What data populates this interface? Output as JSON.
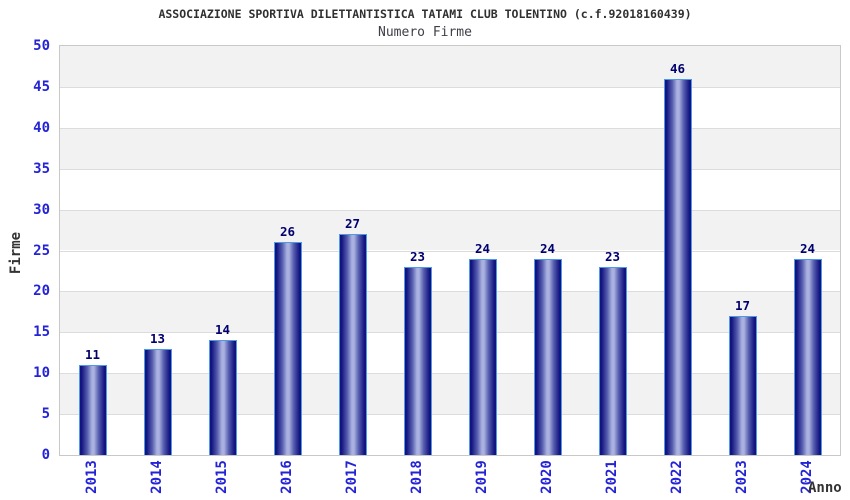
{
  "chart_data": {
    "type": "bar",
    "title": "ASSOCIAZIONE SPORTIVA DILETTANTISTICA TATAMI CLUB TOLENTINO (c.f.92018160439)",
    "subtitle": "Numero Firme",
    "categories": [
      "2013",
      "2014",
      "2015",
      "2016",
      "2017",
      "2018",
      "2019",
      "2020",
      "2021",
      "2022",
      "2023",
      "2024"
    ],
    "values": [
      11,
      13,
      14,
      26,
      27,
      23,
      24,
      24,
      23,
      46,
      17,
      24
    ],
    "xlabel": "Anno",
    "ylabel": "Firme",
    "ylim": [
      0,
      50
    ],
    "yticks": [
      0,
      5,
      10,
      15,
      20,
      25,
      30,
      35,
      40,
      45,
      50
    ],
    "grid": "horizontal gridlines every 5 units with alternating white/gray bands",
    "legend": "none",
    "value_labels": "shown above each bar"
  },
  "colors": {
    "axis_text": "#2424d6",
    "value_text": "#00006e",
    "title_text": "#303030",
    "subtitle_text": "#3f3f48",
    "bar_dark": "#141480",
    "bar_mid": "#555dae",
    "bar_light": "#aab1e0",
    "bar_outline": "#4f9ae4",
    "band_gray": "#f2f2f2",
    "band_white": "#ffffff",
    "gridline": "#dcdcdc",
    "plot_border": "#c8c8c8"
  }
}
